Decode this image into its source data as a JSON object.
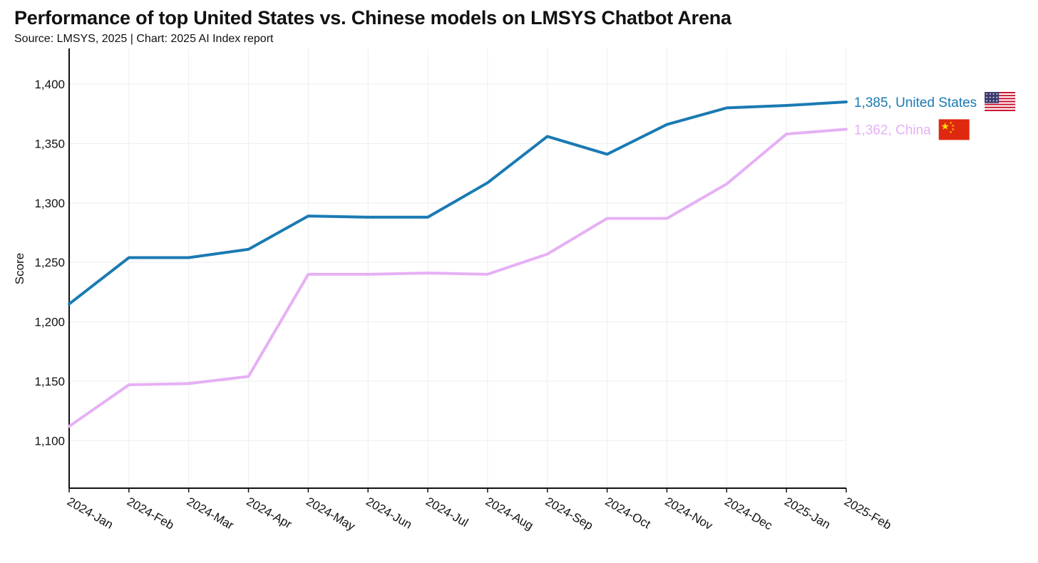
{
  "header": {
    "title": "Performance of top United States vs. Chinese models on LMSYS Chatbot Arena",
    "subtitle": "Source: LMSYS, 2025 | Chart: 2025 AI Index report"
  },
  "colors": {
    "united_states": "#1a7ab3",
    "china": "#e6b0f5",
    "grid": "#eeeeee",
    "axis": "#111111"
  },
  "chart_data": {
    "type": "line",
    "title": "Performance of top United States vs. Chinese models on LMSYS Chatbot Arena",
    "ylabel": "Score",
    "xlabel": "",
    "ylim": [
      1060,
      1430
    ],
    "yticks": [
      "1,100",
      "1,150",
      "1,200",
      "1,250",
      "1,300",
      "1,350",
      "1,400"
    ],
    "ytick_values": [
      1100,
      1150,
      1200,
      1250,
      1300,
      1350,
      1400
    ],
    "grid": true,
    "categories": [
      "2024-Jan",
      "2024-Feb",
      "2024-Mar",
      "2024-Apr",
      "2024-May",
      "2024-Jun",
      "2024-Jul",
      "2024-Aug",
      "2024-Sep",
      "2024-Oct",
      "2024-Nov",
      "2024-Dec",
      "2025-Jan",
      "2025-Feb"
    ],
    "series": [
      {
        "name": "United States",
        "color": "#1a7ab3",
        "end_label": "1,385, United States",
        "flag_icon": "us-flag-icon",
        "values": [
          1215,
          1254,
          1254,
          1261,
          1289,
          1288,
          1288,
          1317,
          1356,
          1341,
          1366,
          1380,
          1382,
          1385
        ]
      },
      {
        "name": "China",
        "color": "#e6b0f5",
        "end_label": "1,362, China",
        "flag_icon": "china-flag-icon",
        "values": [
          1112,
          1147,
          1148,
          1154,
          1240,
          1240,
          1241,
          1240,
          1257,
          1287,
          1287,
          1316,
          1358,
          1362
        ]
      }
    ]
  }
}
